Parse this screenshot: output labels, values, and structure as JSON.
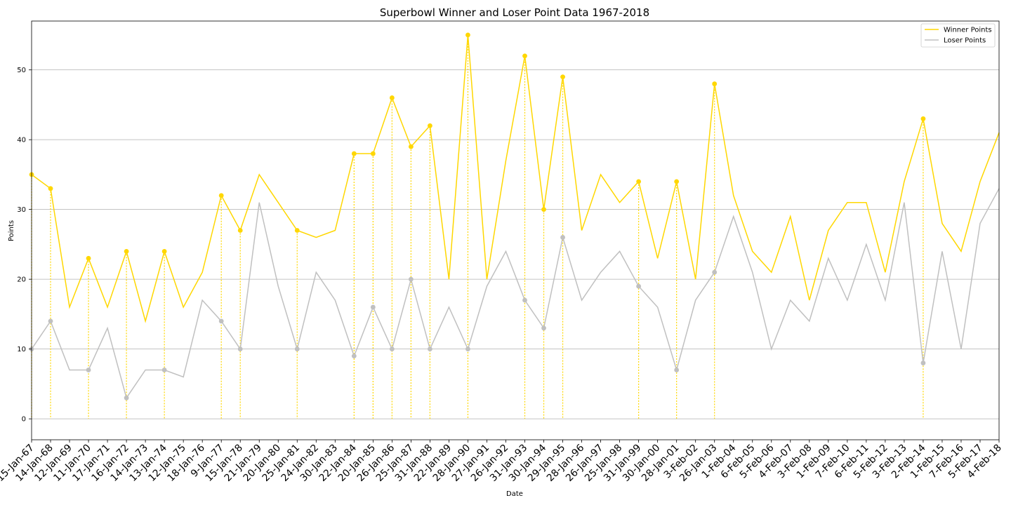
{
  "chart_data": {
    "type": "line",
    "title": "Superbowl Winner and Loser Point Data 1967-2018",
    "xlabel": "Date",
    "ylabel": "Points",
    "ylim": [
      -3,
      57
    ],
    "yticks": [
      0,
      10,
      20,
      30,
      40,
      50
    ],
    "grid": "horizontal",
    "legend_position": "top-right",
    "categories": [
      "15-Jan-67",
      "14-Jan-68",
      "12-Jan-69",
      "11-Jan-70",
      "17-Jan-71",
      "16-Jan-72",
      "14-Jan-73",
      "13-Jan-74",
      "12-Jan-75",
      "18-Jan-76",
      "9-Jan-77",
      "15-Jan-78",
      "21-Jan-79",
      "20-Jan-80",
      "25-Jan-81",
      "24-Jan-82",
      "30-Jan-83",
      "22-Jan-84",
      "20-Jan-85",
      "26-Jan-86",
      "25-Jan-87",
      "31-Jan-88",
      "22-Jan-89",
      "28-Jan-90",
      "27-Jan-91",
      "26-Jan-92",
      "31-Jan-93",
      "30-Jan-94",
      "29-Jan-95",
      "28-Jan-96",
      "26-Jan-97",
      "25-Jan-98",
      "31-Jan-99",
      "30-Jan-00",
      "28-Jan-01",
      "3-Feb-02",
      "26-Jan-03",
      "1-Feb-04",
      "6-Feb-05",
      "5-Feb-06",
      "4-Feb-07",
      "3-Feb-08",
      "1-Feb-09",
      "7-Feb-10",
      "6-Feb-11",
      "5-Feb-12",
      "3-Feb-13",
      "2-Feb-14",
      "1-Feb-15",
      "7-Feb-16",
      "5-Feb-17",
      "4-Feb-18"
    ],
    "series": [
      {
        "name": "Winner Points",
        "color": "#FFD700",
        "values": [
          35,
          33,
          16,
          23,
          16,
          24,
          14,
          24,
          16,
          21,
          32,
          27,
          35,
          31,
          27,
          26,
          27,
          38,
          38,
          46,
          39,
          42,
          20,
          55,
          20,
          37,
          52,
          30,
          49,
          27,
          35,
          31,
          34,
          23,
          34,
          20,
          48,
          32,
          24,
          21,
          29,
          17,
          27,
          31,
          31,
          21,
          34,
          43,
          28,
          24,
          34,
          41
        ]
      },
      {
        "name": "Loser Points",
        "color": "#C0C0C0",
        "values": [
          10,
          14,
          7,
          7,
          13,
          3,
          7,
          7,
          6,
          17,
          14,
          10,
          31,
          19,
          10,
          21,
          17,
          9,
          16,
          10,
          20,
          10,
          16,
          10,
          19,
          24,
          17,
          13,
          26,
          17,
          21,
          24,
          19,
          16,
          7,
          17,
          21,
          29,
          21,
          10,
          17,
          14,
          23,
          17,
          25,
          17,
          31,
          8,
          24,
          10,
          28,
          33
        ]
      }
    ],
    "highlight_indices": [
      0,
      1,
      3,
      5,
      7,
      10,
      11,
      14,
      17,
      18,
      19,
      20,
      21,
      23,
      26,
      27,
      28,
      32,
      34,
      36,
      47
    ]
  }
}
